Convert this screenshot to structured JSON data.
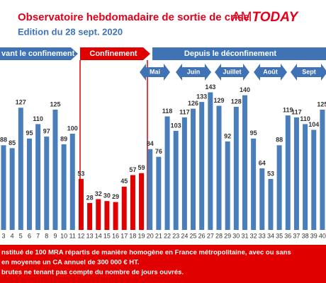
{
  "header": {
    "title": "Observatoire hebdomadaire de sortie de crise",
    "subtitle": "Edition du 28 sept. 2020",
    "logo_a": "AM",
    "logo_b": "TODAY"
  },
  "chart_data": {
    "type": "bar",
    "periods": [
      "vant le confinement",
      "Confinement",
      "Depuis le déconfinement"
    ],
    "months": [
      "Mai",
      "Juin",
      "Juillet",
      "Août",
      "Sept"
    ],
    "categories": [
      "3",
      "4",
      "5",
      "6",
      "7",
      "8",
      "9",
      "10",
      "11",
      "12",
      "13",
      "14",
      "15",
      "16",
      "17",
      "18",
      "19",
      "20",
      "21",
      "22",
      "23",
      "24",
      "25",
      "26",
      "27",
      "28",
      "29",
      "30",
      "31",
      "32",
      "33",
      "34",
      "35",
      "36",
      "37",
      "38",
      "39",
      "40"
    ],
    "values": [
      88,
      85,
      127,
      95,
      110,
      97,
      125,
      89,
      100,
      53,
      28,
      32,
      30,
      29,
      45,
      57,
      59,
      84,
      76,
      118,
      103,
      117,
      126,
      133,
      143,
      129,
      92,
      128,
      140,
      95,
      64,
      53,
      88,
      119,
      117,
      110,
      104,
      125
    ],
    "colors": [
      "#4a7ebb",
      "#4a7ebb",
      "#4a7ebb",
      "#4a7ebb",
      "#4a7ebb",
      "#4a7ebb",
      "#4a7ebb",
      "#4a7ebb",
      "#4a7ebb",
      "#e00000",
      "#e00000",
      "#e00000",
      "#e00000",
      "#e00000",
      "#e00000",
      "#e00000",
      "#e00000",
      "#4a7ebb",
      "#4a7ebb",
      "#4a7ebb",
      "#4a7ebb",
      "#4a7ebb",
      "#4a7ebb",
      "#4a7ebb",
      "#4a7ebb",
      "#4a7ebb",
      "#4a7ebb",
      "#4a7ebb",
      "#4a7ebb",
      "#4a7ebb",
      "#4a7ebb",
      "#4a7ebb",
      "#4a7ebb",
      "#4a7ebb",
      "#4a7ebb",
      "#4a7ebb",
      "#4a7ebb",
      "#4a7ebb"
    ]
  },
  "footnote": [
    "nstitué de 100 MRA répartis de manière homogène en France métropolitaine, avec ou sans",
    "en moyenne un CA annuel de 300 000 € HT.",
    "brutes ne tenant pas compte du nombre de jours ouvrés."
  ]
}
